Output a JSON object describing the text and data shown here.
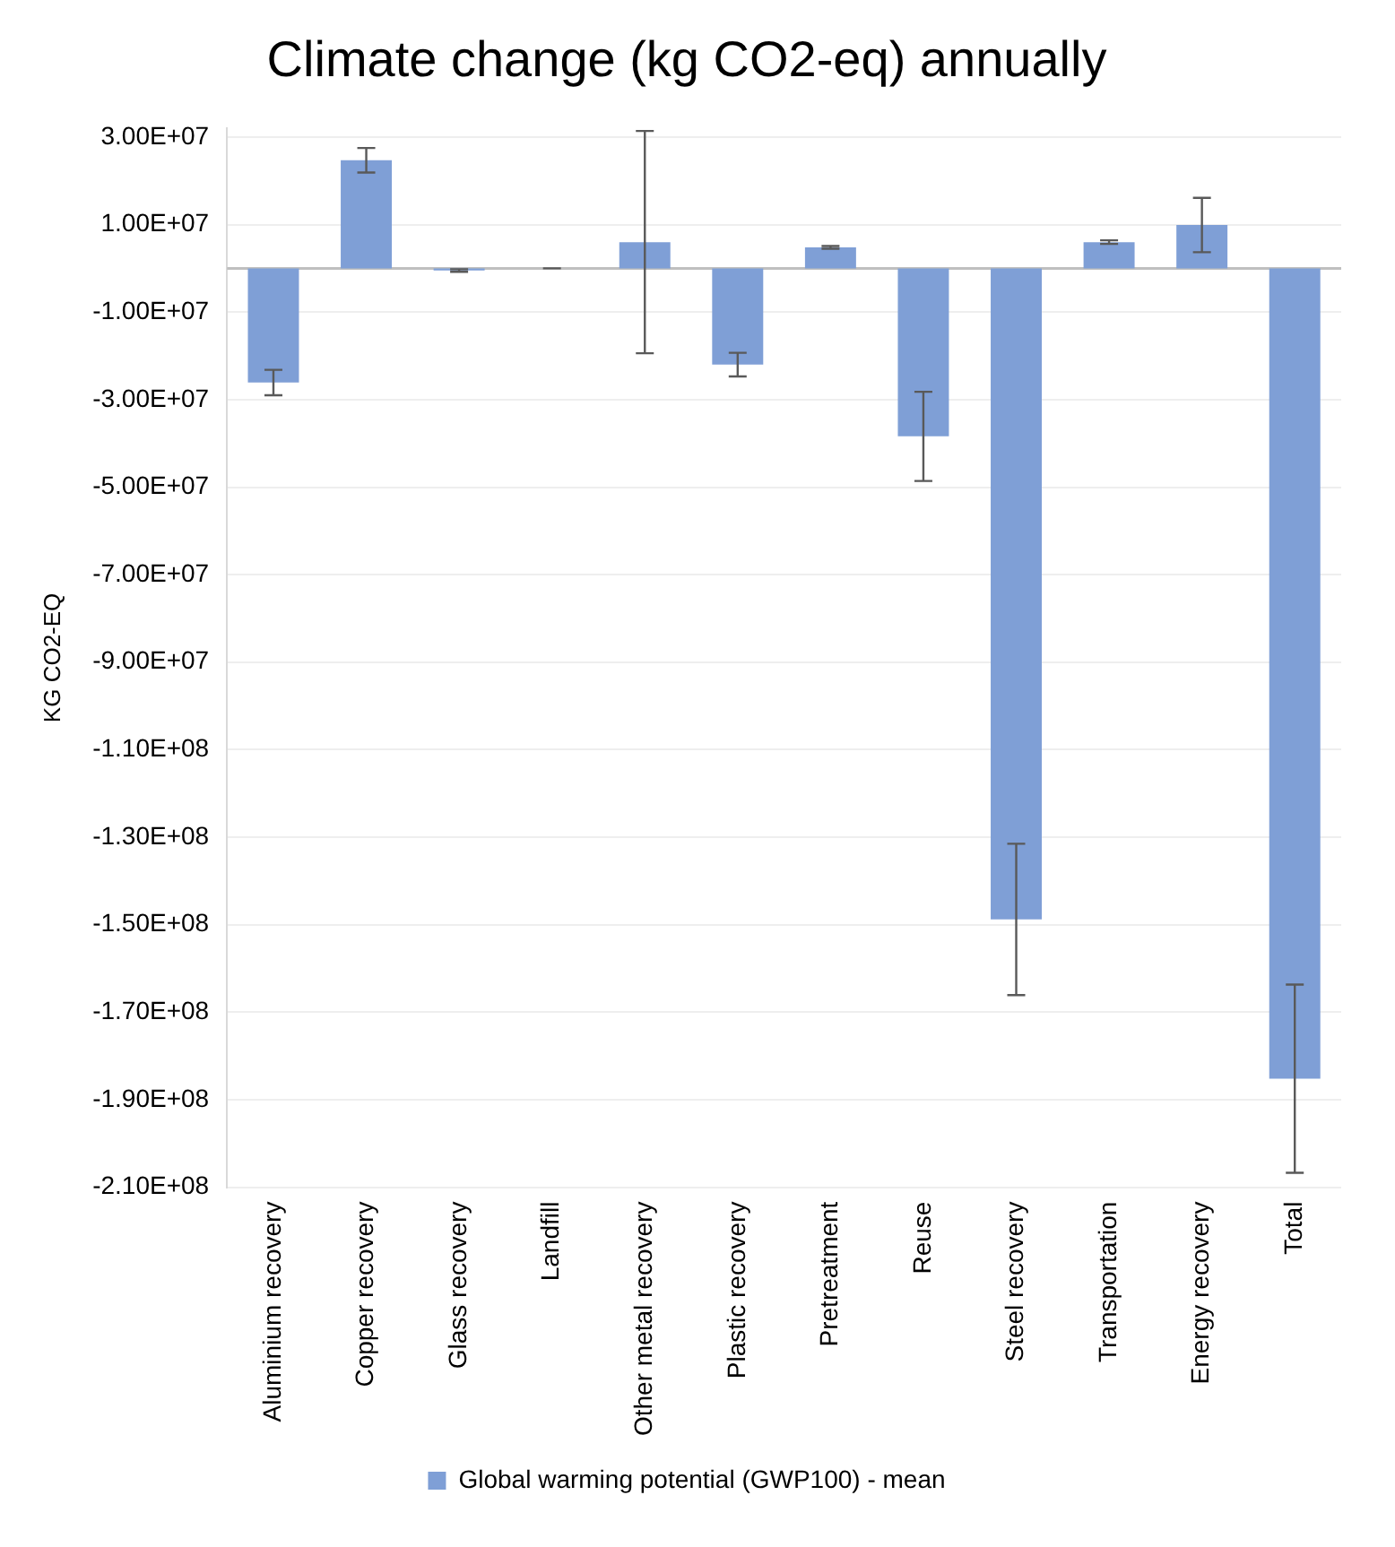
{
  "chart_data": {
    "type": "bar",
    "title": "Climate change (kg CO2-eq) annually",
    "ylabel": "KG CO2-EQ",
    "categories": [
      "Aluminium recovery",
      "Copper recovery",
      "Glass recovery",
      "Landfill",
      "Other metal recovery",
      "Plastic recovery",
      "Pretreatment",
      "Reuse",
      "Steel recovery",
      "Transportation",
      "Energy recovery",
      "Total"
    ],
    "series": [
      {
        "name": "Global warming potential (GWP100) - mean",
        "color": "#7f9fd6",
        "values": [
          -26100000,
          24700000,
          -500000,
          0,
          6000000,
          -22000000,
          4800000,
          -38400000,
          -148800000,
          6000000,
          9900000,
          -185200000
        ],
        "errors": [
          2900000,
          2800000,
          300000,
          0,
          25400000,
          2700000,
          300000,
          10200000,
          17300000,
          400000,
          6200000,
          21500000
        ]
      }
    ],
    "ylim": [
      -210000000,
      32000000
    ],
    "yticks": [
      {
        "value": 30000000,
        "label": "3.00E+07"
      },
      {
        "value": 10000000,
        "label": "1.00E+07"
      },
      {
        "value": -10000000,
        "label": "-1.00E+07"
      },
      {
        "value": -30000000,
        "label": "-3.00E+07"
      },
      {
        "value": -50000000,
        "label": "-5.00E+07"
      },
      {
        "value": -70000000,
        "label": "-7.00E+07"
      },
      {
        "value": -90000000,
        "label": "-9.00E+07"
      },
      {
        "value": -110000000,
        "label": "-1.10E+08"
      },
      {
        "value": -130000000,
        "label": "-1.30E+08"
      },
      {
        "value": -150000000,
        "label": "-1.50E+08"
      },
      {
        "value": -170000000,
        "label": "-1.70E+08"
      },
      {
        "value": -190000000,
        "label": "-1.90E+08"
      },
      {
        "value": -210000000,
        "label": "-2.10E+08"
      }
    ],
    "grid": "y",
    "legend": "bottom"
  }
}
